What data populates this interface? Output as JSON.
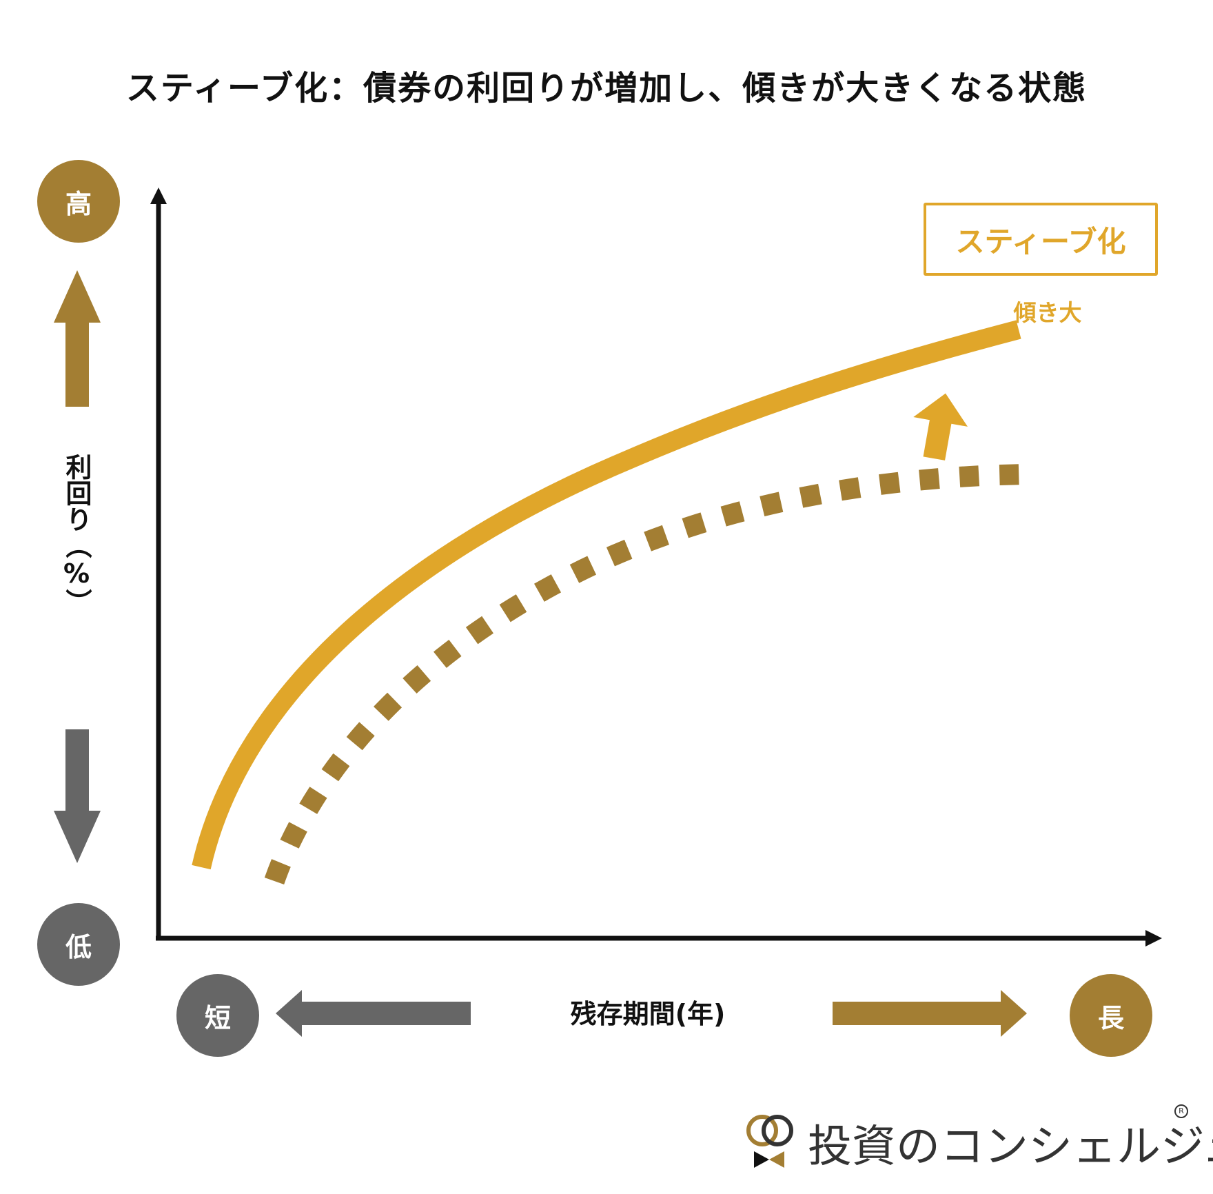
{
  "title": "スティーブ化：債券の利回りが増加し、傾きが大きくなる状態",
  "y_axis": {
    "label": "利回り（%）",
    "high": "高",
    "low": "低"
  },
  "x_axis": {
    "label": "残存期間(年)",
    "short": "短",
    "long": "長"
  },
  "legend": {
    "label": "スティーブ化",
    "tilt_label": "傾き大"
  },
  "colors": {
    "gold": "#e0a62a",
    "bronze": "#a37e33",
    "gray": "#666666",
    "axis": "#111111"
  },
  "icons": {
    "up": "arrow-up-icon",
    "down": "arrow-down-icon",
    "left": "arrow-left-icon",
    "right": "arrow-right-icon",
    "shift": "shift-arrow-icon"
  },
  "logo": {
    "text": "投資のコンシェルジュ",
    "registered": "R"
  }
}
